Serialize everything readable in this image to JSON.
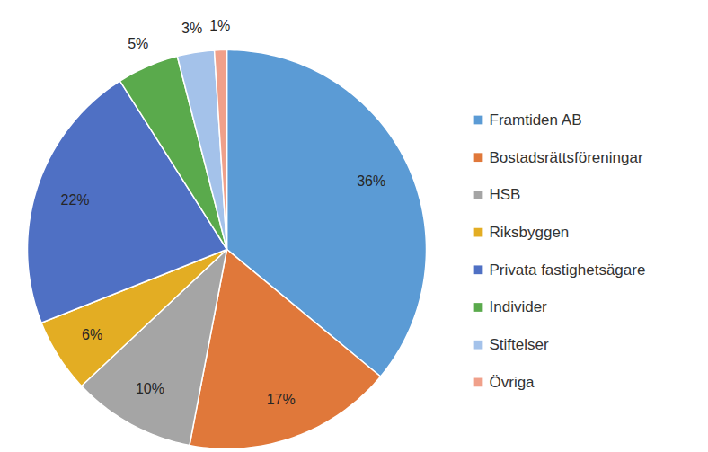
{
  "chart_data": {
    "type": "pie",
    "categories": [
      "Framtiden AB",
      "Bostadsrättsföreningar",
      "HSB",
      "Riksbyggen",
      "Privata fastighetsägare",
      "Individer",
      "Stiftelser",
      "Övriga"
    ],
    "values": [
      36,
      17,
      10,
      6,
      22,
      5,
      3,
      1
    ],
    "value_labels": [
      "36%",
      "17%",
      "10%",
      "6%",
      "22%",
      "5%",
      "3%",
      "1%"
    ],
    "colors": [
      "#5b9bd5",
      "#e0783a",
      "#a5a5a5",
      "#e3ad23",
      "#4f70c4",
      "#5aaa4c",
      "#a4c2ea",
      "#f0a08a"
    ],
    "data_labels": true,
    "legend": "right"
  }
}
